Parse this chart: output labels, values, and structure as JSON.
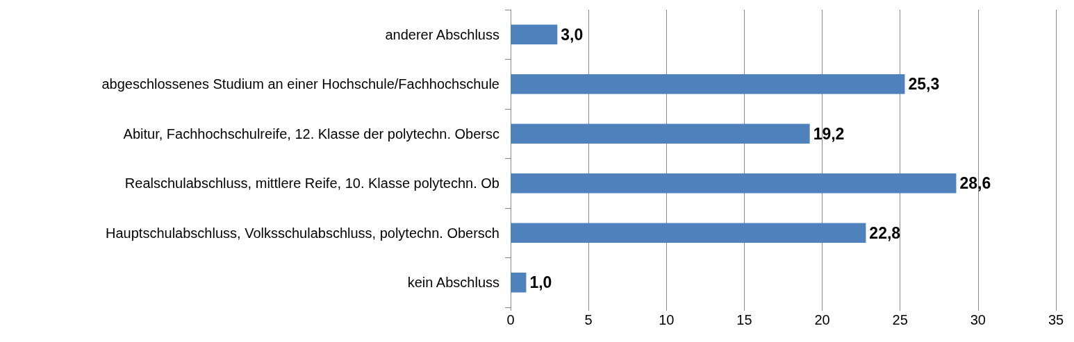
{
  "chart_data": {
    "type": "bar",
    "orientation": "horizontal",
    "categories": [
      "anderer Abschluss",
      "abgeschlossenes Studium an einer Hochschule/Fachhochschule",
      "Abitur, Fachhochschulreife, 12. Klasse der polytechn. Obersc",
      "Realschulabschluss, mittlere Reife, 10. Klasse polytechn. Ob",
      "Hauptschulabschluss, Volksschulabschluss, polytechn. Obersch",
      "kein Abschluss"
    ],
    "values": [
      3.0,
      25.3,
      19.2,
      28.6,
      22.8,
      1.0
    ],
    "value_labels": [
      "3,0",
      "25,3",
      "19,2",
      "28,6",
      "22,8",
      "1,0"
    ],
    "color": "#4f81bd",
    "xlim": [
      0,
      35
    ],
    "xticks": [
      0,
      5,
      10,
      15,
      20,
      25,
      30,
      35
    ],
    "grid": "x"
  }
}
